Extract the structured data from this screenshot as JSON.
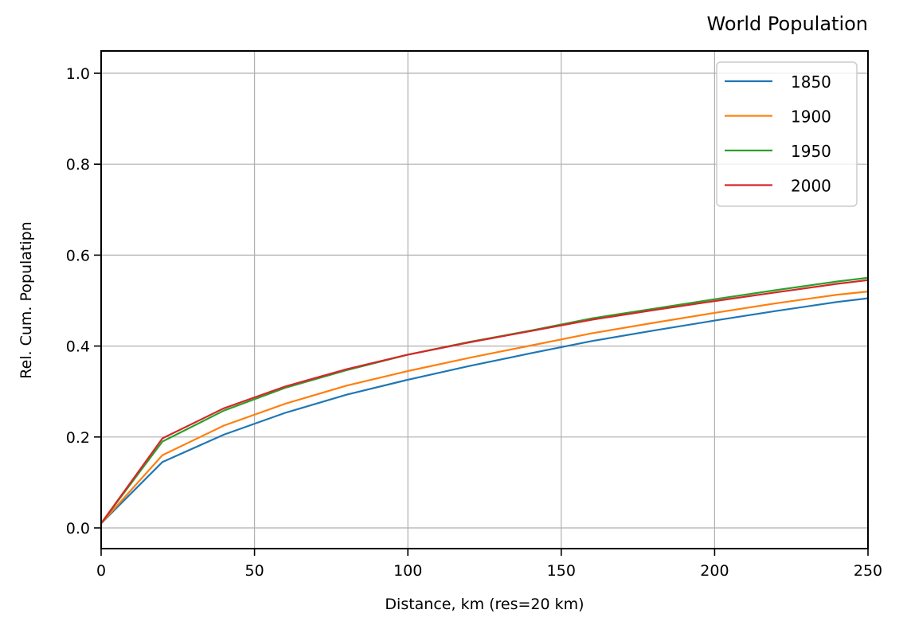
{
  "chart_data": {
    "type": "line",
    "title": "World Population",
    "xlabel": "Distance, km (res=20 km)",
    "ylabel": "Rel. Cum. Populatipn",
    "xlim": [
      0,
      250
    ],
    "ylim": [
      -0.045,
      1.05
    ],
    "xticks": [
      0,
      50,
      100,
      150,
      200,
      250
    ],
    "yticks": [
      0.0,
      0.2,
      0.4,
      0.6,
      0.8,
      1.0
    ],
    "xtick_labels": [
      "0",
      "50",
      "100",
      "150",
      "200",
      "250"
    ],
    "ytick_labels": [
      "0.0",
      "0.2",
      "0.4",
      "0.6",
      "0.8",
      "1.0"
    ],
    "grid": true,
    "legend_position": "upper right",
    "x": [
      0,
      20,
      40,
      60,
      80,
      100,
      120,
      140,
      160,
      180,
      200,
      220,
      240,
      250
    ],
    "series": [
      {
        "name": "1850",
        "color": "#1f77b4",
        "values": [
          0.01,
          0.145,
          0.205,
          0.253,
          0.293,
          0.326,
          0.356,
          0.384,
          0.411,
          0.434,
          0.456,
          0.477,
          0.497,
          0.505
        ]
      },
      {
        "name": "1900",
        "color": "#ff7f0e",
        "values": [
          0.01,
          0.16,
          0.225,
          0.273,
          0.313,
          0.345,
          0.374,
          0.401,
          0.428,
          0.451,
          0.473,
          0.494,
          0.513,
          0.52
        ]
      },
      {
        "name": "1950",
        "color": "#2ca02c",
        "values": [
          0.01,
          0.19,
          0.258,
          0.308,
          0.347,
          0.381,
          0.409,
          0.434,
          0.461,
          0.482,
          0.503,
          0.523,
          0.542,
          0.55
        ]
      },
      {
        "name": "2000",
        "color": "#d62728",
        "values": [
          0.01,
          0.197,
          0.263,
          0.311,
          0.349,
          0.381,
          0.408,
          0.433,
          0.458,
          0.479,
          0.499,
          0.518,
          0.537,
          0.545
        ]
      }
    ]
  }
}
